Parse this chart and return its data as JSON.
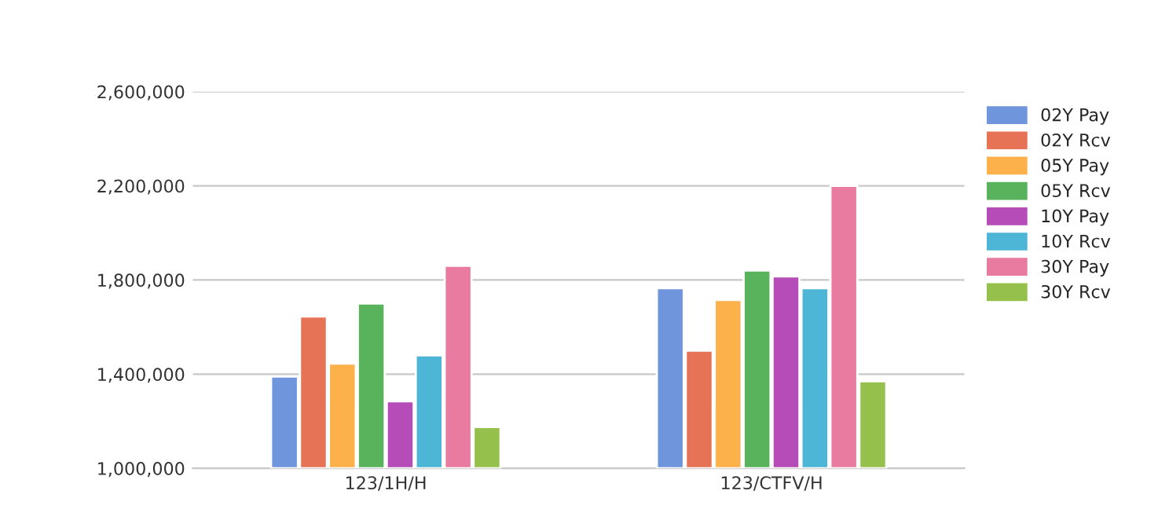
{
  "chart_data": {
    "type": "bar",
    "categories": [
      "123/1H/H",
      "123/CTFV/H"
    ],
    "series": [
      {
        "name": "02Y Pay",
        "color": "#6f95dc",
        "values": [
          1390000,
          1765000
        ]
      },
      {
        "name": "02Y Rcv",
        "color": "#e77356",
        "values": [
          1645000,
          1500000
        ]
      },
      {
        "name": "05Y Pay",
        "color": "#fdb14b",
        "values": [
          1445000,
          1715000
        ]
      },
      {
        "name": "05Y Rcv",
        "color": "#58b35c",
        "values": [
          1700000,
          1840000
        ]
      },
      {
        "name": "10Y Pay",
        "color": "#b54cb7",
        "values": [
          1285000,
          1815000
        ]
      },
      {
        "name": "10Y Rcv",
        "color": "#4db6d6",
        "values": [
          1480000,
          1765000
        ]
      },
      {
        "name": "30Y Pay",
        "color": "#e87b9f",
        "values": [
          1860000,
          2200000
        ]
      },
      {
        "name": "30Y Rcv",
        "color": "#95c04b",
        "values": [
          1175000,
          1370000
        ]
      }
    ],
    "ylim": [
      1000000,
      2600000
    ],
    "yticks": [
      {
        "value": 1000000,
        "label": "1,000,000"
      },
      {
        "value": 1400000,
        "label": "1,400,000"
      },
      {
        "value": 1800000,
        "label": "1,800,000"
      },
      {
        "value": 2200000,
        "label": "2,200,000"
      },
      {
        "value": 2600000,
        "label": "2,600,000"
      }
    ],
    "grid": "y",
    "legend": "right"
  }
}
